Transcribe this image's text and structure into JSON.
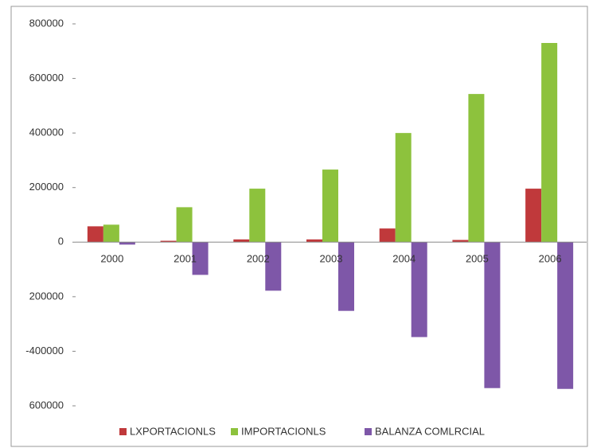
{
  "chart_data": {
    "type": "bar",
    "categories": [
      "2000",
      "2001",
      "2002",
      "2003",
      "2004",
      "2005",
      "2006"
    ],
    "series": [
      {
        "name": "LXPORTACIONLS",
        "color": "#c0393b",
        "values": [
          58000,
          5000,
          10000,
          10000,
          50000,
          8000,
          196000
        ]
      },
      {
        "name": "IMPORTACIONLS",
        "color": "#8dc23d",
        "values": [
          64000,
          128000,
          196000,
          266000,
          400000,
          543000,
          730000
        ]
      },
      {
        "name": "BALANZA COMLRCIAL",
        "color": "#7e57a8",
        "values": [
          -9000,
          -120000,
          -178000,
          -252000,
          -348000,
          -535000,
          -538000
        ]
      }
    ],
    "ylim": [
      -600000,
      800000
    ],
    "yticks": [
      800000,
      600000,
      400000,
      200000,
      0,
      {
        "value": -200000,
        "label": "200000"
      },
      -400000,
      {
        "value": -600000,
        "label": "600000"
      }
    ],
    "legend": "bottom"
  }
}
